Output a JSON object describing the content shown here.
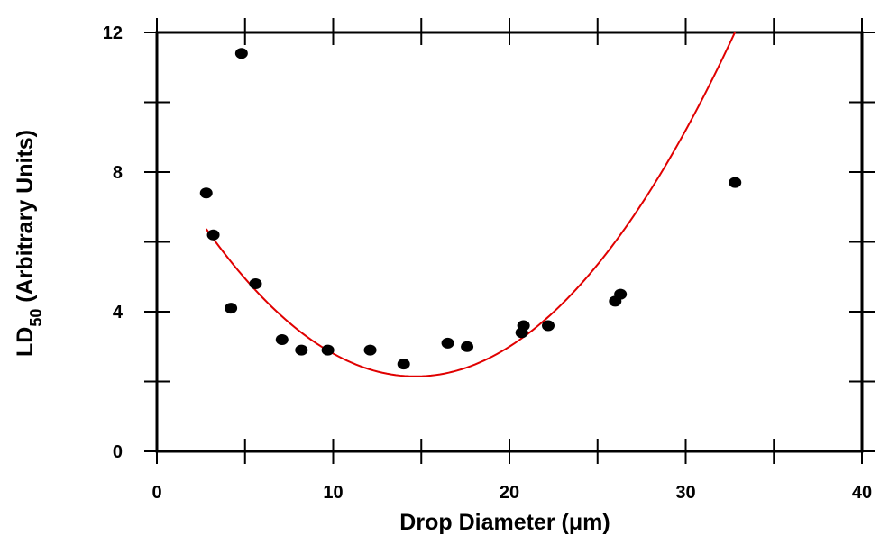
{
  "chart_data": {
    "type": "scatter",
    "xlabel": "Drop Diameter (μm)",
    "ylabel": {
      "main": "LD",
      "subscript": "50",
      "suffix": " (Arbitrary Units)"
    },
    "xlim": [
      0,
      40
    ],
    "ylim": [
      0,
      12
    ],
    "xticks": [
      "0",
      "10",
      "20",
      "30",
      "40"
    ],
    "yticks": [
      "0",
      "4",
      "8",
      "12"
    ],
    "x_minor_tick_interval": 5,
    "y_minor_tick_interval": 2,
    "grid": false,
    "marker_color": "#000000",
    "fit_color": "#e00000",
    "points": [
      {
        "x": 2.8,
        "y": 7.4
      },
      {
        "x": 3.2,
        "y": 6.2
      },
      {
        "x": 4.2,
        "y": 4.1
      },
      {
        "x": 4.8,
        "y": 11.4
      },
      {
        "x": 5.6,
        "y": 4.8
      },
      {
        "x": 7.1,
        "y": 3.2
      },
      {
        "x": 8.2,
        "y": 2.9
      },
      {
        "x": 9.7,
        "y": 2.9
      },
      {
        "x": 12.1,
        "y": 2.9
      },
      {
        "x": 14.0,
        "y": 2.5
      },
      {
        "x": 16.5,
        "y": 3.1
      },
      {
        "x": 17.6,
        "y": 3.0
      },
      {
        "x": 20.7,
        "y": 3.4
      },
      {
        "x": 20.8,
        "y": 3.6
      },
      {
        "x": 22.2,
        "y": 3.6
      },
      {
        "x": 26.0,
        "y": 4.3
      },
      {
        "x": 26.3,
        "y": 4.5
      },
      {
        "x": 32.8,
        "y": 7.7
      }
    ],
    "fit_curve": {
      "type": "quadratic",
      "x_range": [
        2.8,
        32.8
      ],
      "coefficients": [
        8.6,
        -0.88,
        0.03
      ]
    }
  }
}
